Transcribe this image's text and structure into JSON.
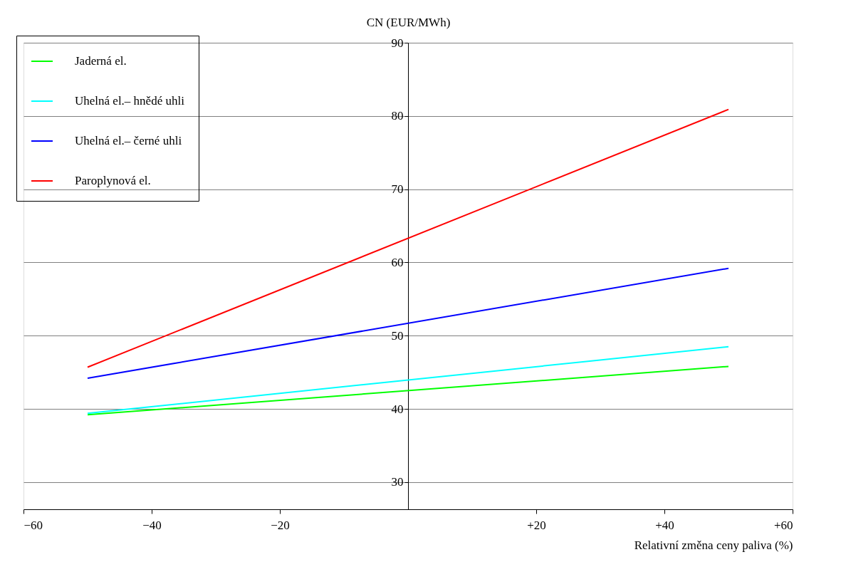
{
  "chart_data": {
    "type": "line",
    "xlabel": "Relativní změna ceny paliva (%)",
    "ylabel": "CN (EUR/MWh)",
    "x": [
      -50,
      50
    ],
    "series": [
      {
        "name": "Jaderná el.",
        "color": "#00ff00",
        "values": [
          39.2,
          45.8
        ]
      },
      {
        "name": "Uhelná el.– hnědé uhli",
        "color": "#00ffff",
        "values": [
          39.4,
          48.5
        ]
      },
      {
        "name": "Uhelná el.– černé uhli",
        "color": "#0000ff",
        "values": [
          44.2,
          59.2
        ]
      },
      {
        "name": "Paroplynová el.",
        "color": "#ff0000",
        "values": [
          45.7,
          80.9
        ]
      }
    ],
    "xlim": [
      -60,
      60
    ],
    "xticks": [
      {
        "value": -60,
        "label": "−60"
      },
      {
        "value": -40,
        "label": "−40"
      },
      {
        "value": -20,
        "label": "−20"
      },
      {
        "value": 20,
        "label": "+20"
      },
      {
        "value": 40,
        "label": "+40"
      },
      {
        "value": 60,
        "label": "+60"
      }
    ],
    "ylim": [
      26.3,
      90
    ],
    "yticks": [
      30,
      40,
      50,
      60,
      70,
      80,
      90
    ],
    "grid": "y",
    "legend": "top left",
    "marker": "none",
    "line_style": "solid"
  }
}
